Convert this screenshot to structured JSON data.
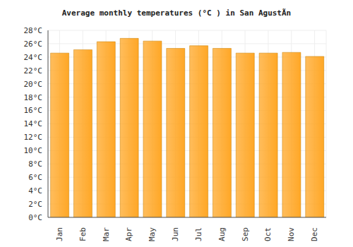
{
  "chart_data": {
    "type": "bar",
    "title": "Average monthly temperatures (°C ) in San AgustÃ­n",
    "categories": [
      "Jan",
      "Feb",
      "Mar",
      "Apr",
      "May",
      "Jun",
      "Jul",
      "Aug",
      "Sep",
      "Oct",
      "Nov",
      "Dec"
    ],
    "values": [
      24.6,
      25.1,
      26.3,
      26.8,
      26.4,
      25.3,
      25.7,
      25.3,
      24.6,
      24.6,
      24.7,
      24.1
    ],
    "color": "#ffa726",
    "ylim": [
      0,
      28
    ],
    "yticks": [
      {
        "value": 0,
        "label": "0°C"
      },
      {
        "value": 2,
        "label": "2°C"
      },
      {
        "value": 4,
        "label": "4°C"
      },
      {
        "value": 6,
        "label": "6°C"
      },
      {
        "value": 8,
        "label": "8°C"
      },
      {
        "value": 10,
        "label": "10°C"
      },
      {
        "value": 12,
        "label": "12°C"
      },
      {
        "value": 14,
        "label": "14°C"
      },
      {
        "value": 16,
        "label": "16°C"
      },
      {
        "value": 18,
        "label": "18°C"
      },
      {
        "value": 20,
        "label": "20°C"
      },
      {
        "value": 22,
        "label": "22°C"
      },
      {
        "value": 24,
        "label": "24°C"
      },
      {
        "value": 26,
        "label": "26°C"
      },
      {
        "value": 28,
        "label": "28°C"
      }
    ],
    "grid": true
  }
}
